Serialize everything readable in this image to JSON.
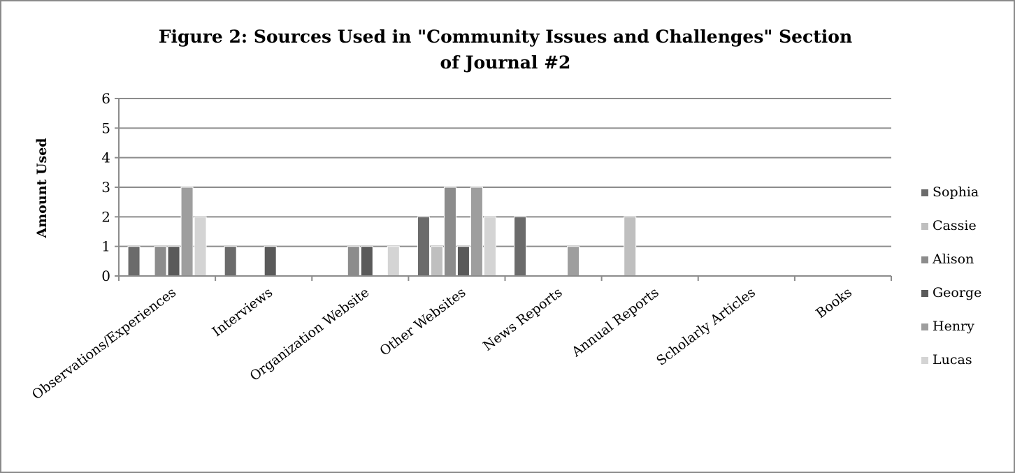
{
  "chart_data": {
    "type": "bar",
    "title_lines": [
      "Figure 2: Sources Used in \"Community Issues and Challenges\" Section",
      "of Journal #2"
    ],
    "xlabel": "",
    "ylabel": "Amount Used",
    "ylim": [
      0,
      6
    ],
    "yticks": [
      "0",
      "1",
      "2",
      "3",
      "4",
      "5",
      "6"
    ],
    "grid": true,
    "legend_position": "right",
    "categories": [
      "Observations/Experiences",
      "Interviews",
      "Organization Website",
      "Other Websites",
      "News Reports",
      "Annual Reports",
      "Scholarly Articles",
      "Books"
    ],
    "series": [
      {
        "name": "Sophia",
        "color": "#6b6b6b",
        "values": [
          1,
          1,
          0,
          2,
          2,
          0,
          0,
          0
        ]
      },
      {
        "name": "Cassie",
        "color": "#bfbfbf",
        "values": [
          0,
          0,
          0,
          1,
          0,
          2,
          0,
          0
        ]
      },
      {
        "name": "Alison",
        "color": "#8c8c8c",
        "values": [
          1,
          0,
          1,
          3,
          0,
          0,
          0,
          0
        ]
      },
      {
        "name": "George",
        "color": "#5a5a5a",
        "values": [
          1,
          1,
          1,
          1,
          0,
          0,
          0,
          0
        ]
      },
      {
        "name": "Henry",
        "color": "#9e9e9e",
        "values": [
          3,
          0,
          0,
          3,
          1,
          0,
          0,
          0
        ]
      },
      {
        "name": "Lucas",
        "color": "#d4d4d4",
        "values": [
          2,
          0,
          1,
          2,
          0,
          0,
          0,
          0
        ]
      }
    ]
  }
}
